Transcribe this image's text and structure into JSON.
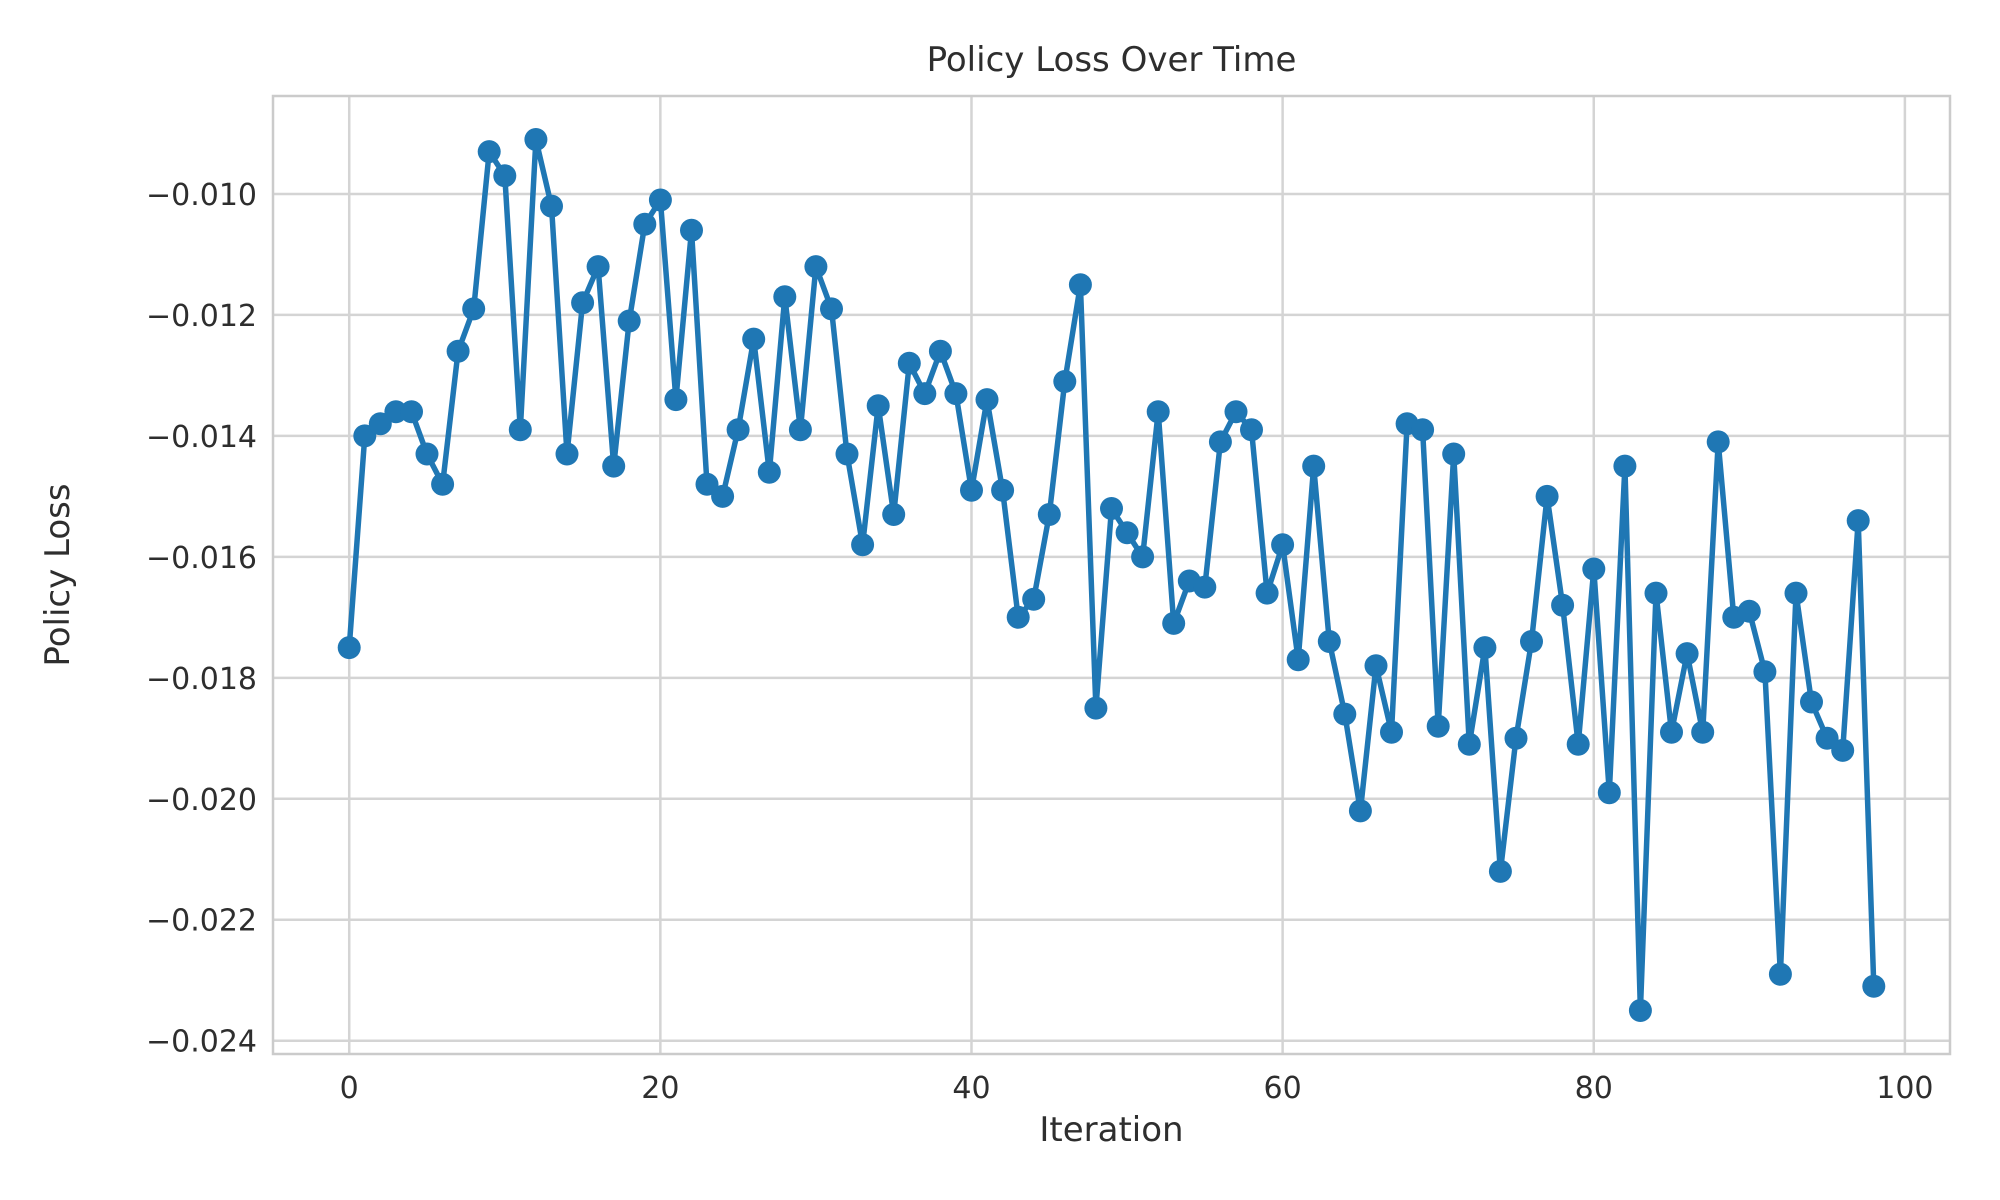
{
  "figure": {
    "title": "Policy Loss Over Time",
    "xlabel": "Iteration",
    "ylabel": "Policy Loss"
  },
  "chart_data": {
    "type": "line",
    "title": "Policy Loss Over Time",
    "xlabel": "Iteration",
    "ylabel": "Policy Loss",
    "legend": null,
    "grid": true,
    "grid_color": "#d4d4d4",
    "spine_color": "#cbcbcb",
    "line_color": "#1f77b4",
    "marker": "o",
    "background": "#ffffff",
    "xlim": [
      -4.9,
      102.9
    ],
    "ylim": [
      -0.02422,
      -0.00838
    ],
    "x_ticks": [
      0,
      20,
      40,
      60,
      80,
      100
    ],
    "x_tick_labels": [
      "0",
      "20",
      "40",
      "60",
      "80",
      "100"
    ],
    "y_ticks": [
      -0.01,
      -0.012,
      -0.014,
      -0.016,
      -0.018,
      -0.02,
      -0.022,
      -0.024
    ],
    "y_tick_labels": [
      "−0.010",
      "−0.012",
      "−0.014",
      "−0.016",
      "−0.018",
      "−0.020",
      "−0.022",
      "−0.024"
    ],
    "x": [
      0,
      1,
      2,
      3,
      4,
      5,
      6,
      7,
      8,
      9,
      10,
      11,
      12,
      13,
      14,
      15,
      16,
      17,
      18,
      19,
      20,
      21,
      22,
      23,
      24,
      25,
      26,
      27,
      28,
      29,
      30,
      31,
      32,
      33,
      34,
      35,
      36,
      37,
      38,
      39,
      40,
      41,
      42,
      43,
      44,
      45,
      46,
      47,
      48,
      49,
      50,
      51,
      52,
      53,
      54,
      55,
      56,
      57,
      58,
      59,
      60,
      61,
      62,
      63,
      64,
      65,
      66,
      67,
      68,
      69,
      70,
      71,
      72,
      73,
      74,
      75,
      76,
      77,
      78,
      79,
      80,
      81,
      82,
      83,
      84,
      85,
      86,
      87,
      88,
      89,
      90,
      91,
      92,
      93,
      94,
      95,
      96,
      97,
      98
    ],
    "y": [
      -0.0175,
      -0.014,
      -0.0138,
      -0.0136,
      -0.0136,
      -0.0143,
      -0.0148,
      -0.0126,
      -0.0119,
      -0.0093,
      -0.0097,
      -0.0139,
      -0.0091,
      -0.0102,
      -0.0143,
      -0.0118,
      -0.0112,
      -0.0145,
      -0.0121,
      -0.0105,
      -0.0101,
      -0.0134,
      -0.0106,
      -0.0148,
      -0.015,
      -0.0139,
      -0.0124,
      -0.0146,
      -0.0117,
      -0.0139,
      -0.0112,
      -0.0119,
      -0.0143,
      -0.0158,
      -0.0135,
      -0.0153,
      -0.0128,
      -0.0133,
      -0.0126,
      -0.0133,
      -0.0149,
      -0.0134,
      -0.0149,
      -0.017,
      -0.0167,
      -0.0153,
      -0.0131,
      -0.0115,
      -0.0185,
      -0.0152,
      -0.0156,
      -0.016,
      -0.0136,
      -0.0171,
      -0.0164,
      -0.0165,
      -0.0141,
      -0.0136,
      -0.0139,
      -0.0166,
      -0.0158,
      -0.0177,
      -0.0145,
      -0.0174,
      -0.0186,
      -0.0202,
      -0.0178,
      -0.0189,
      -0.0138,
      -0.0139,
      -0.0188,
      -0.0143,
      -0.0191,
      -0.0175,
      -0.0212,
      -0.019,
      -0.0174,
      -0.015,
      -0.0168,
      -0.0191,
      -0.0162,
      -0.0199,
      -0.0145,
      -0.0235,
      -0.0166,
      -0.0189,
      -0.0176,
      -0.0189,
      -0.0141,
      -0.017,
      -0.0169,
      -0.0179,
      -0.0229,
      -0.0166,
      -0.0184,
      -0.019,
      -0.0192,
      -0.0154,
      -0.0231
    ]
  }
}
